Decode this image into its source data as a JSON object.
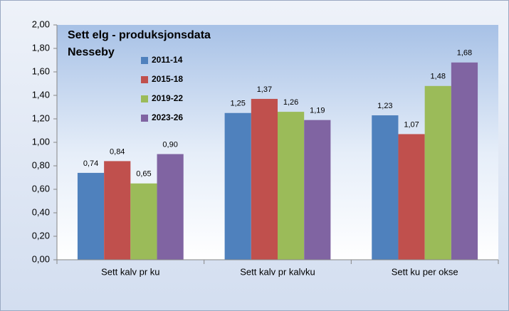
{
  "chart_data": {
    "type": "bar",
    "title": "Sett elg - produksjonsdata",
    "subtitle": "Nesseby",
    "categories": [
      "Sett kalv pr ku",
      "Sett kalv pr kalvku",
      "Sett ku per okse"
    ],
    "series": [
      {
        "name": "2011-14",
        "color": "#4f81bd",
        "values": [
          0.74,
          1.25,
          1.23
        ],
        "value_labels": [
          "0,74",
          "1,25",
          "1,23"
        ]
      },
      {
        "name": "2015-18",
        "color": "#c0504d",
        "values": [
          0.84,
          1.37,
          1.07
        ],
        "value_labels": [
          "0,84",
          "1,37",
          "1,07"
        ]
      },
      {
        "name": "2019-22",
        "color": "#9bbb59",
        "values": [
          0.65,
          1.26,
          1.48
        ],
        "value_labels": [
          "0,65",
          "1,26",
          "1,48"
        ]
      },
      {
        "name": "2023-26",
        "color": "#8064a2",
        "values": [
          0.9,
          1.19,
          1.68
        ],
        "value_labels": [
          "0,90",
          "1,19",
          "1,68"
        ]
      }
    ],
    "ylim": [
      0,
      2
    ],
    "yticks": [
      {
        "value": 0,
        "label": "0,00"
      },
      {
        "value": 0.2,
        "label": "0,20"
      },
      {
        "value": 0.4,
        "label": "0,40"
      },
      {
        "value": 0.6,
        "label": "0,60"
      },
      {
        "value": 0.8,
        "label": "0,80"
      },
      {
        "value": 1,
        "label": "1,00"
      },
      {
        "value": 1.2,
        "label": "1,20"
      },
      {
        "value": 1.4,
        "label": "1,40"
      },
      {
        "value": 1.6,
        "label": "1,60"
      },
      {
        "value": 1.8,
        "label": "1,80"
      },
      {
        "value": 2,
        "label": "2,00"
      }
    ],
    "grid": false,
    "legend": "top-left"
  }
}
